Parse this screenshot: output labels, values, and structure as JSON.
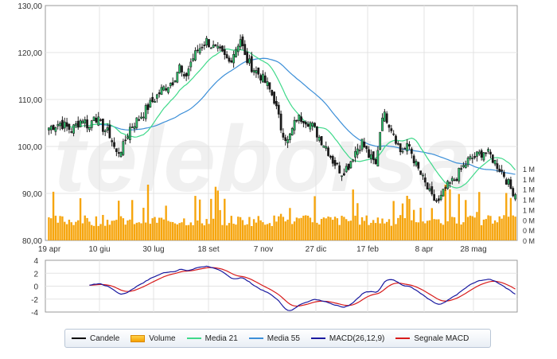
{
  "watermark": "teleborsa",
  "chart_data": {
    "type": "candlestick",
    "price_axis": {
      "ylim": [
        80,
        130
      ],
      "ticks": [
        "80,00",
        "90,00",
        "100,00",
        "110,00",
        "120,00",
        "130,00"
      ]
    },
    "volume_axis": {
      "ticks": [
        "0 M",
        "0 M",
        "0 M",
        "1 M",
        "1 M",
        "1 M",
        "1 M",
        "1 M"
      ]
    },
    "x_axis": {
      "tick_labels": [
        "19 apr",
        "10 giu",
        "30 lug",
        "18 set",
        "7 nov",
        "27 dic",
        "17 feb",
        "8 apr",
        "28 mag"
      ]
    },
    "macd_axis": {
      "ylim": [
        -4,
        4
      ],
      "ticks": [
        "4",
        "2",
        "0",
        "-2",
        "-4"
      ]
    },
    "close_anchors": [
      {
        "i": 0,
        "v": 104
      },
      {
        "i": 5,
        "v": 105
      },
      {
        "i": 10,
        "v": 103.5
      },
      {
        "i": 15,
        "v": 106
      },
      {
        "i": 18,
        "v": 104
      },
      {
        "i": 20,
        "v": 107
      },
      {
        "i": 23,
        "v": 104.5
      },
      {
        "i": 27,
        "v": 102.5
      },
      {
        "i": 30,
        "v": 98.5
      },
      {
        "i": 33,
        "v": 100
      },
      {
        "i": 36,
        "v": 104
      },
      {
        "i": 40,
        "v": 106
      },
      {
        "i": 45,
        "v": 109
      },
      {
        "i": 50,
        "v": 112
      },
      {
        "i": 55,
        "v": 114
      },
      {
        "i": 58,
        "v": 117
      },
      {
        "i": 60,
        "v": 114
      },
      {
        "i": 63,
        "v": 118
      },
      {
        "i": 66,
        "v": 120.5
      },
      {
        "i": 70,
        "v": 122.5
      },
      {
        "i": 73,
        "v": 121
      },
      {
        "i": 76,
        "v": 120
      },
      {
        "i": 80,
        "v": 118
      },
      {
        "i": 83,
        "v": 121
      },
      {
        "i": 85,
        "v": 123
      },
      {
        "i": 87,
        "v": 119
      },
      {
        "i": 90,
        "v": 117
      },
      {
        "i": 94,
        "v": 115
      },
      {
        "i": 97,
        "v": 113
      },
      {
        "i": 100,
        "v": 110
      },
      {
        "i": 103,
        "v": 104
      },
      {
        "i": 106,
        "v": 101
      },
      {
        "i": 110,
        "v": 106
      },
      {
        "i": 113,
        "v": 106
      },
      {
        "i": 116,
        "v": 105
      },
      {
        "i": 120,
        "v": 102
      },
      {
        "i": 123,
        "v": 100
      },
      {
        "i": 126,
        "v": 97
      },
      {
        "i": 130,
        "v": 94.5
      },
      {
        "i": 133,
        "v": 96
      },
      {
        "i": 136,
        "v": 99
      },
      {
        "i": 139,
        "v": 101
      },
      {
        "i": 142,
        "v": 98
      },
      {
        "i": 145,
        "v": 96
      },
      {
        "i": 148,
        "v": 107
      },
      {
        "i": 150,
        "v": 106
      },
      {
        "i": 153,
        "v": 103
      },
      {
        "i": 156,
        "v": 99
      },
      {
        "i": 160,
        "v": 100
      },
      {
        "i": 163,
        "v": 96
      },
      {
        "i": 166,
        "v": 93
      },
      {
        "i": 170,
        "v": 89
      },
      {
        "i": 173,
        "v": 88
      },
      {
        "i": 176,
        "v": 91
      },
      {
        "i": 180,
        "v": 93
      },
      {
        "i": 183,
        "v": 95
      },
      {
        "i": 186,
        "v": 97
      },
      {
        "i": 190,
        "v": 98
      },
      {
        "i": 193,
        "v": 99
      },
      {
        "i": 196,
        "v": 98
      },
      {
        "i": 199,
        "v": 96
      },
      {
        "i": 202,
        "v": 94
      },
      {
        "i": 205,
        "v": 91
      },
      {
        "i": 207,
        "v": 90
      }
    ],
    "legend": [
      {
        "label": "Candele",
        "color": "#000000",
        "kind": "line"
      },
      {
        "label": "Volume",
        "color": "#f5a000",
        "kind": "bar"
      },
      {
        "label": "Media 21",
        "color": "#3fd98a",
        "kind": "line"
      },
      {
        "label": "Media 55",
        "color": "#3c8fd8",
        "kind": "line"
      },
      {
        "label": "MACD(26,12,9)",
        "color": "#1a1aa0",
        "kind": "line"
      },
      {
        "label": "Segnale MACD",
        "color": "#d81b1b",
        "kind": "line"
      }
    ],
    "grid": true
  }
}
